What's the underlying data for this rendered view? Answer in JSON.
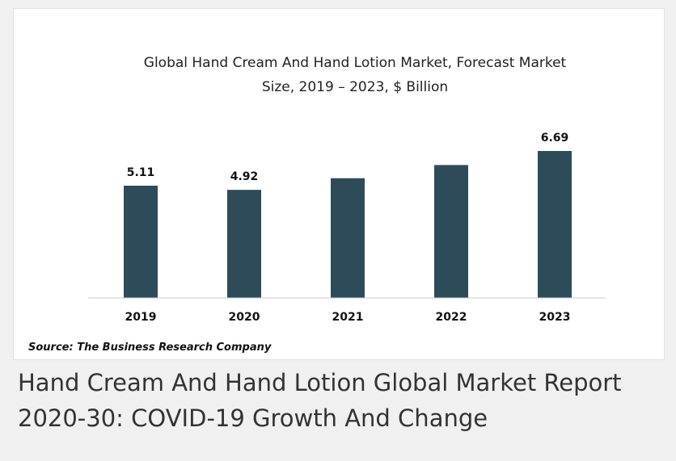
{
  "caption": "Hand Cream And Hand Lotion Global Market Report 2020-30: COVID-19 Growth And Change",
  "chart_data": {
    "type": "bar",
    "title_line1": "Global Hand Cream And Hand Lotion Market, Forecast Market",
    "title_line2": "Size, 2019 – 2023, $ Billion",
    "categories": [
      "2019",
      "2020",
      "2021",
      "2022",
      "2023"
    ],
    "values": [
      5.11,
      4.92,
      5.45,
      6.05,
      6.69
    ],
    "data_labels": [
      "5.11",
      "4.92",
      "",
      "",
      "6.69"
    ],
    "xlabel": "",
    "ylabel": "",
    "ylim": [
      0,
      6.69
    ],
    "grid": false,
    "legend": "none",
    "bar_color": "#2e4b5a",
    "source": "Source: The Business Research Company"
  }
}
